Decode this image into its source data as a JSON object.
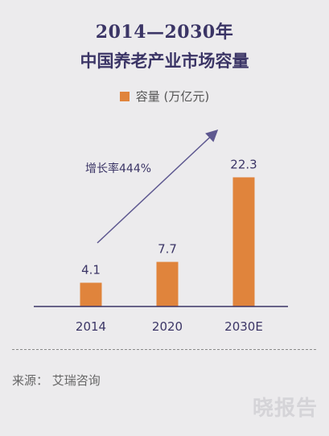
{
  "title_line1": "2014—2030年",
  "title_line2": "中国养老产业市场容量",
  "chart_data": {
    "type": "bar",
    "categories": [
      "2014",
      "2020",
      "2030E"
    ],
    "series": [
      {
        "name": "容量 (万亿元)",
        "values": [
          4.1,
          7.7,
          22.3
        ]
      }
    ],
    "data_labels": [
      "4.1",
      "7.7",
      "22.3"
    ],
    "annotation": "增长率444%",
    "legend_position": "top-center",
    "ylim": [
      0,
      25
    ],
    "grid": false,
    "colors": {
      "bar": "#e0843c",
      "arrow": "#5e5890",
      "axis": "#3b3566"
    }
  },
  "source": "来源：  艾瑞咨询",
  "watermark": "晓报告"
}
